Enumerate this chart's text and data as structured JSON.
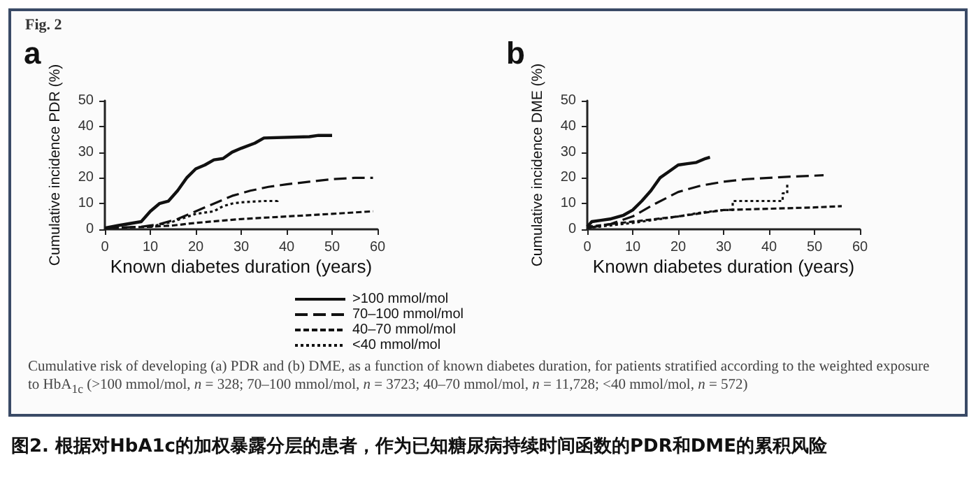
{
  "chart_data": [
    {
      "type": "line",
      "title": "a",
      "xlabel": "Known diabetes duration (years)",
      "ylabel": "Cumulative incidence PDR (%)",
      "xlim": [
        0,
        60
      ],
      "xticks": [
        0,
        10,
        20,
        30,
        40,
        50,
        60
      ],
      "ylim": [
        0,
        50
      ],
      "yticks": [
        0,
        10,
        20,
        30,
        40,
        50
      ],
      "grid": false,
      "legend": "bottom",
      "marker": "none",
      "annotations": [
        "Fig. 2",
        "Cumulative risk of developing (a) PDR and (b) DME, as a function of known diabetes duration, for patients stratified according to the weighted exposure to HbA$_{1c}$ (>100 mmol/mol, n = 328; 70–100 mmol/mol, n = 3723; 40–70 mmol/mol, n = 11,728; <40 mmol/mol, n = 572)",
        "图2. 根据对HbA1c的加权暴露分层的患者，作为已知糖尿病持续时间函数的PDR和DME的累积风险"
      ],
      "series": [
        {
          "name": ">100 mmol/mol",
          "color": "#111111",
          "line_style": "solid",
          "x": [
            0,
            3,
            8,
            10,
            12,
            14,
            16,
            18,
            20,
            22,
            24,
            26,
            28,
            30,
            33,
            35,
            45,
            47,
            50
          ],
          "values": [
            0.5,
            1.5,
            3,
            7,
            10,
            11,
            15,
            20,
            23.5,
            25,
            27,
            27.5,
            30,
            31.5,
            33.5,
            35.5,
            36,
            36.5,
            36.5
          ]
        },
        {
          "name": "70–100 mmol/mol",
          "color": "#111111",
          "line_style": "dashed",
          "x": [
            0,
            8,
            12,
            16,
            20,
            24,
            28,
            32,
            36,
            40,
            45,
            50,
            55,
            59
          ],
          "values": [
            0.5,
            1,
            2,
            4,
            7,
            10,
            13,
            15,
            16.5,
            17.5,
            18.5,
            19.5,
            20,
            20
          ]
        },
        {
          "name": "40–70 mmol/mol",
          "color": "#111111",
          "line_style": "dashed",
          "x": [
            0,
            10,
            15,
            20,
            30,
            40,
            50,
            59
          ],
          "values": [
            0.5,
            1,
            1.5,
            2.5,
            4,
            5,
            6,
            7
          ]
        },
        {
          "name": "<40 mmol/mol",
          "color": "#111111",
          "line_style": "dotted",
          "x": [
            10,
            15,
            20,
            24,
            26,
            28,
            30,
            35,
            38,
            38
          ],
          "values": [
            1,
            3,
            6,
            7,
            9,
            10,
            10.5,
            11,
            11,
            12
          ]
        }
      ]
    },
    {
      "type": "line",
      "title": "b",
      "xlabel": "Known diabetes duration (years)",
      "ylabel": "Cumulative incidence DME (%)",
      "xlim": [
        0,
        60
      ],
      "xticks": [
        0,
        10,
        20,
        30,
        40,
        50,
        60
      ],
      "ylim": [
        0,
        50
      ],
      "yticks": [
        0,
        10,
        20,
        30,
        40,
        50
      ],
      "grid": false,
      "marker": "none",
      "series": [
        {
          "color": "#111111",
          "line_style": "solid",
          "x": [
            0,
            1,
            3,
            5,
            8,
            10,
            12,
            14,
            16,
            18,
            20,
            22,
            24,
            26,
            27
          ],
          "values": [
            1,
            3,
            3.5,
            4,
            5.5,
            7.5,
            11,
            15,
            20,
            22.5,
            25,
            25.5,
            26,
            27.5,
            28
          ]
        },
        {
          "color": "#111111",
          "line_style": "dashed",
          "x": [
            0,
            5,
            10,
            15,
            20,
            25,
            30,
            35,
            40,
            45,
            52
          ],
          "values": [
            0.5,
            2,
            5,
            10,
            14.5,
            17,
            18.5,
            19.5,
            20,
            20.5,
            21
          ]
        },
        {
          "color": "#111111",
          "line_style": "dashed",
          "x": [
            0,
            5,
            10,
            20,
            30,
            40,
            50,
            56
          ],
          "values": [
            1,
            2,
            3,
            5,
            7.5,
            8,
            8.5,
            9
          ]
        },
        {
          "color": "#111111",
          "line_style": "dotted",
          "x": [
            0,
            10,
            20,
            25,
            30,
            32,
            32,
            40,
            43,
            43,
            44,
            44
          ],
          "values": [
            0.5,
            2.5,
            5,
            6.5,
            7.5,
            7.5,
            11,
            11,
            11,
            14,
            14,
            18
          ]
        }
      ]
    }
  ]
}
